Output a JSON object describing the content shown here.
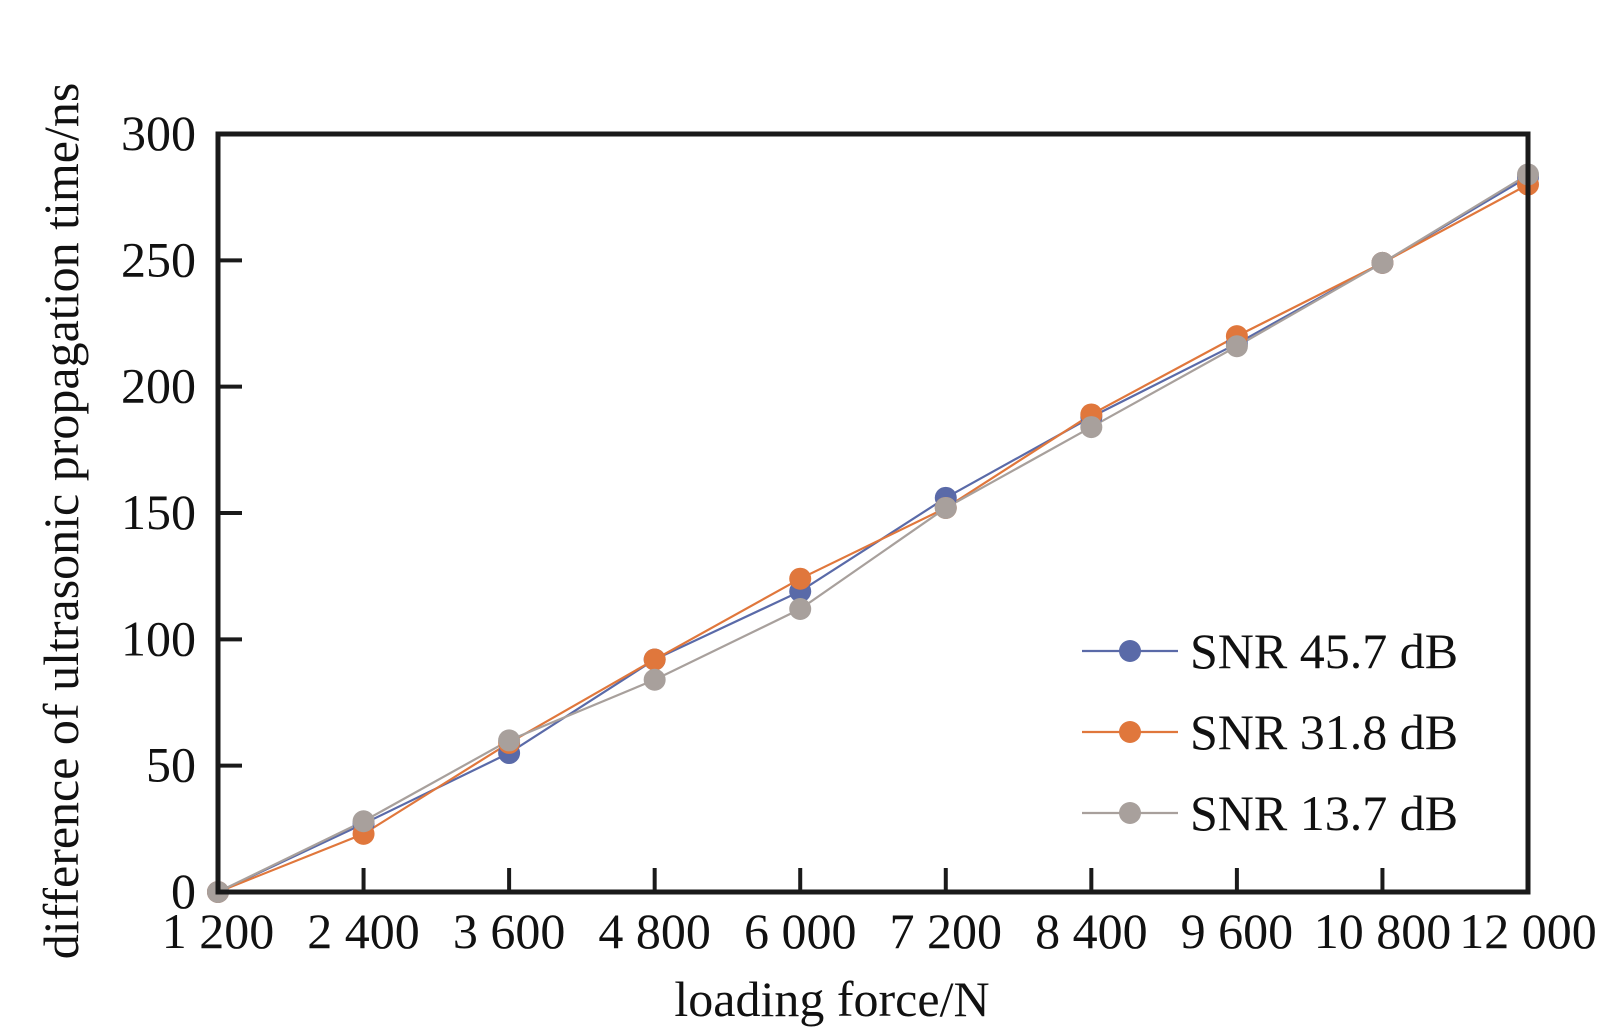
{
  "chart_data": {
    "type": "line",
    "xlabel": "loading force/N",
    "ylabel": "difference of ultrasonic propagation time/ns",
    "x": [
      1200,
      2400,
      3600,
      4800,
      6000,
      7200,
      8400,
      9600,
      10800,
      12000
    ],
    "x_tick_labels": [
      "1 200",
      "2 400",
      "3 600",
      "4 800",
      "6 000",
      "7 200",
      "8 400",
      "9 600",
      "10 800",
      "12 000"
    ],
    "xlim": [
      1200,
      12000
    ],
    "ylim": [
      0,
      300
    ],
    "y_ticks": [
      0,
      50,
      100,
      150,
      200,
      250,
      300
    ],
    "grid": false,
    "legend_position": "bottom-right",
    "series": [
      {
        "name": "SNR 45.7 dB",
        "color": "#5a6aa8",
        "values": [
          0,
          27,
          55,
          92,
          119,
          156,
          188,
          217,
          249,
          283
        ]
      },
      {
        "name": "SNR 31.8 dB",
        "color": "#e0773c",
        "values": [
          0,
          23,
          59,
          92,
          124,
          152,
          189,
          220,
          249,
          280
        ]
      },
      {
        "name": "SNR 13.7 dB",
        "color": "#a8a09c",
        "values": [
          0,
          28,
          60,
          84,
          112,
          152,
          184,
          216,
          249,
          284
        ]
      }
    ]
  }
}
